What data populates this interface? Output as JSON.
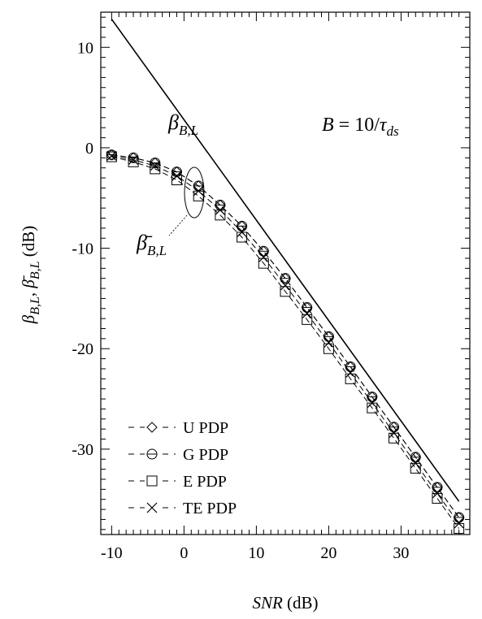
{
  "chart_data": {
    "type": "line",
    "xlabel": {
      "italic": "SNR",
      "rest": " (dB)"
    },
    "ylabel": {
      "part1": "β",
      "sub1": "B,L",
      "sep": ", ",
      "part2": "β̄",
      "sub2": "B,L",
      "unit": " (dB)"
    },
    "xlim": [
      -11.5,
      39.5
    ],
    "ylim": [
      -38.5,
      13.5
    ],
    "x_ticks": [
      -10,
      0,
      10,
      20,
      30
    ],
    "y_ticks": [
      10,
      0,
      -10,
      -20,
      -30
    ],
    "grid": false,
    "legend_position": "bottom-left",
    "annotations": {
      "formula_lhs": "B",
      "formula_eq": " = 10/",
      "formula_tau": "τ",
      "formula_sub": "ds",
      "beta_label": "β",
      "beta_sub": "B,L",
      "beta_bar_label": "β̄",
      "beta_bar_sub": "B,L"
    },
    "reference_line": {
      "x": [
        -10,
        38
      ],
      "y": [
        12.8,
        -35.2
      ]
    },
    "x": [
      -10,
      -7,
      -4,
      -1,
      2,
      5,
      8,
      11,
      14,
      17,
      20,
      23,
      26,
      29,
      32,
      35,
      38
    ],
    "series": [
      {
        "name": "U PDP",
        "marker": "diamond",
        "values": [
          -0.7,
          -1.0,
          -1.5,
          -2.4,
          -3.8,
          -5.7,
          -7.8,
          -10.3,
          -13.0,
          -15.9,
          -18.8,
          -21.8,
          -24.8,
          -27.8,
          -30.8,
          -33.8,
          -36.8
        ]
      },
      {
        "name": "G PDP",
        "marker": "circle",
        "values": [
          -0.7,
          -1.0,
          -1.5,
          -2.4,
          -3.8,
          -5.7,
          -7.8,
          -10.3,
          -13.0,
          -15.9,
          -18.8,
          -21.8,
          -24.8,
          -27.8,
          -30.8,
          -33.8,
          -36.8
        ]
      },
      {
        "name": "E PDP",
        "marker": "square",
        "values": [
          -0.9,
          -1.4,
          -2.1,
          -3.2,
          -4.8,
          -6.7,
          -8.9,
          -11.5,
          -14.3,
          -17.1,
          -20.0,
          -23.0,
          -25.9,
          -28.9,
          -31.9,
          -34.9,
          -37.9
        ]
      },
      {
        "name": "TE PDP",
        "marker": "x",
        "values": [
          -0.8,
          -1.2,
          -1.8,
          -2.8,
          -4.3,
          -6.2,
          -8.4,
          -10.9,
          -13.7,
          -16.5,
          -19.4,
          -22.4,
          -25.4,
          -28.4,
          -31.4,
          -34.4,
          -37.4
        ]
      }
    ]
  }
}
